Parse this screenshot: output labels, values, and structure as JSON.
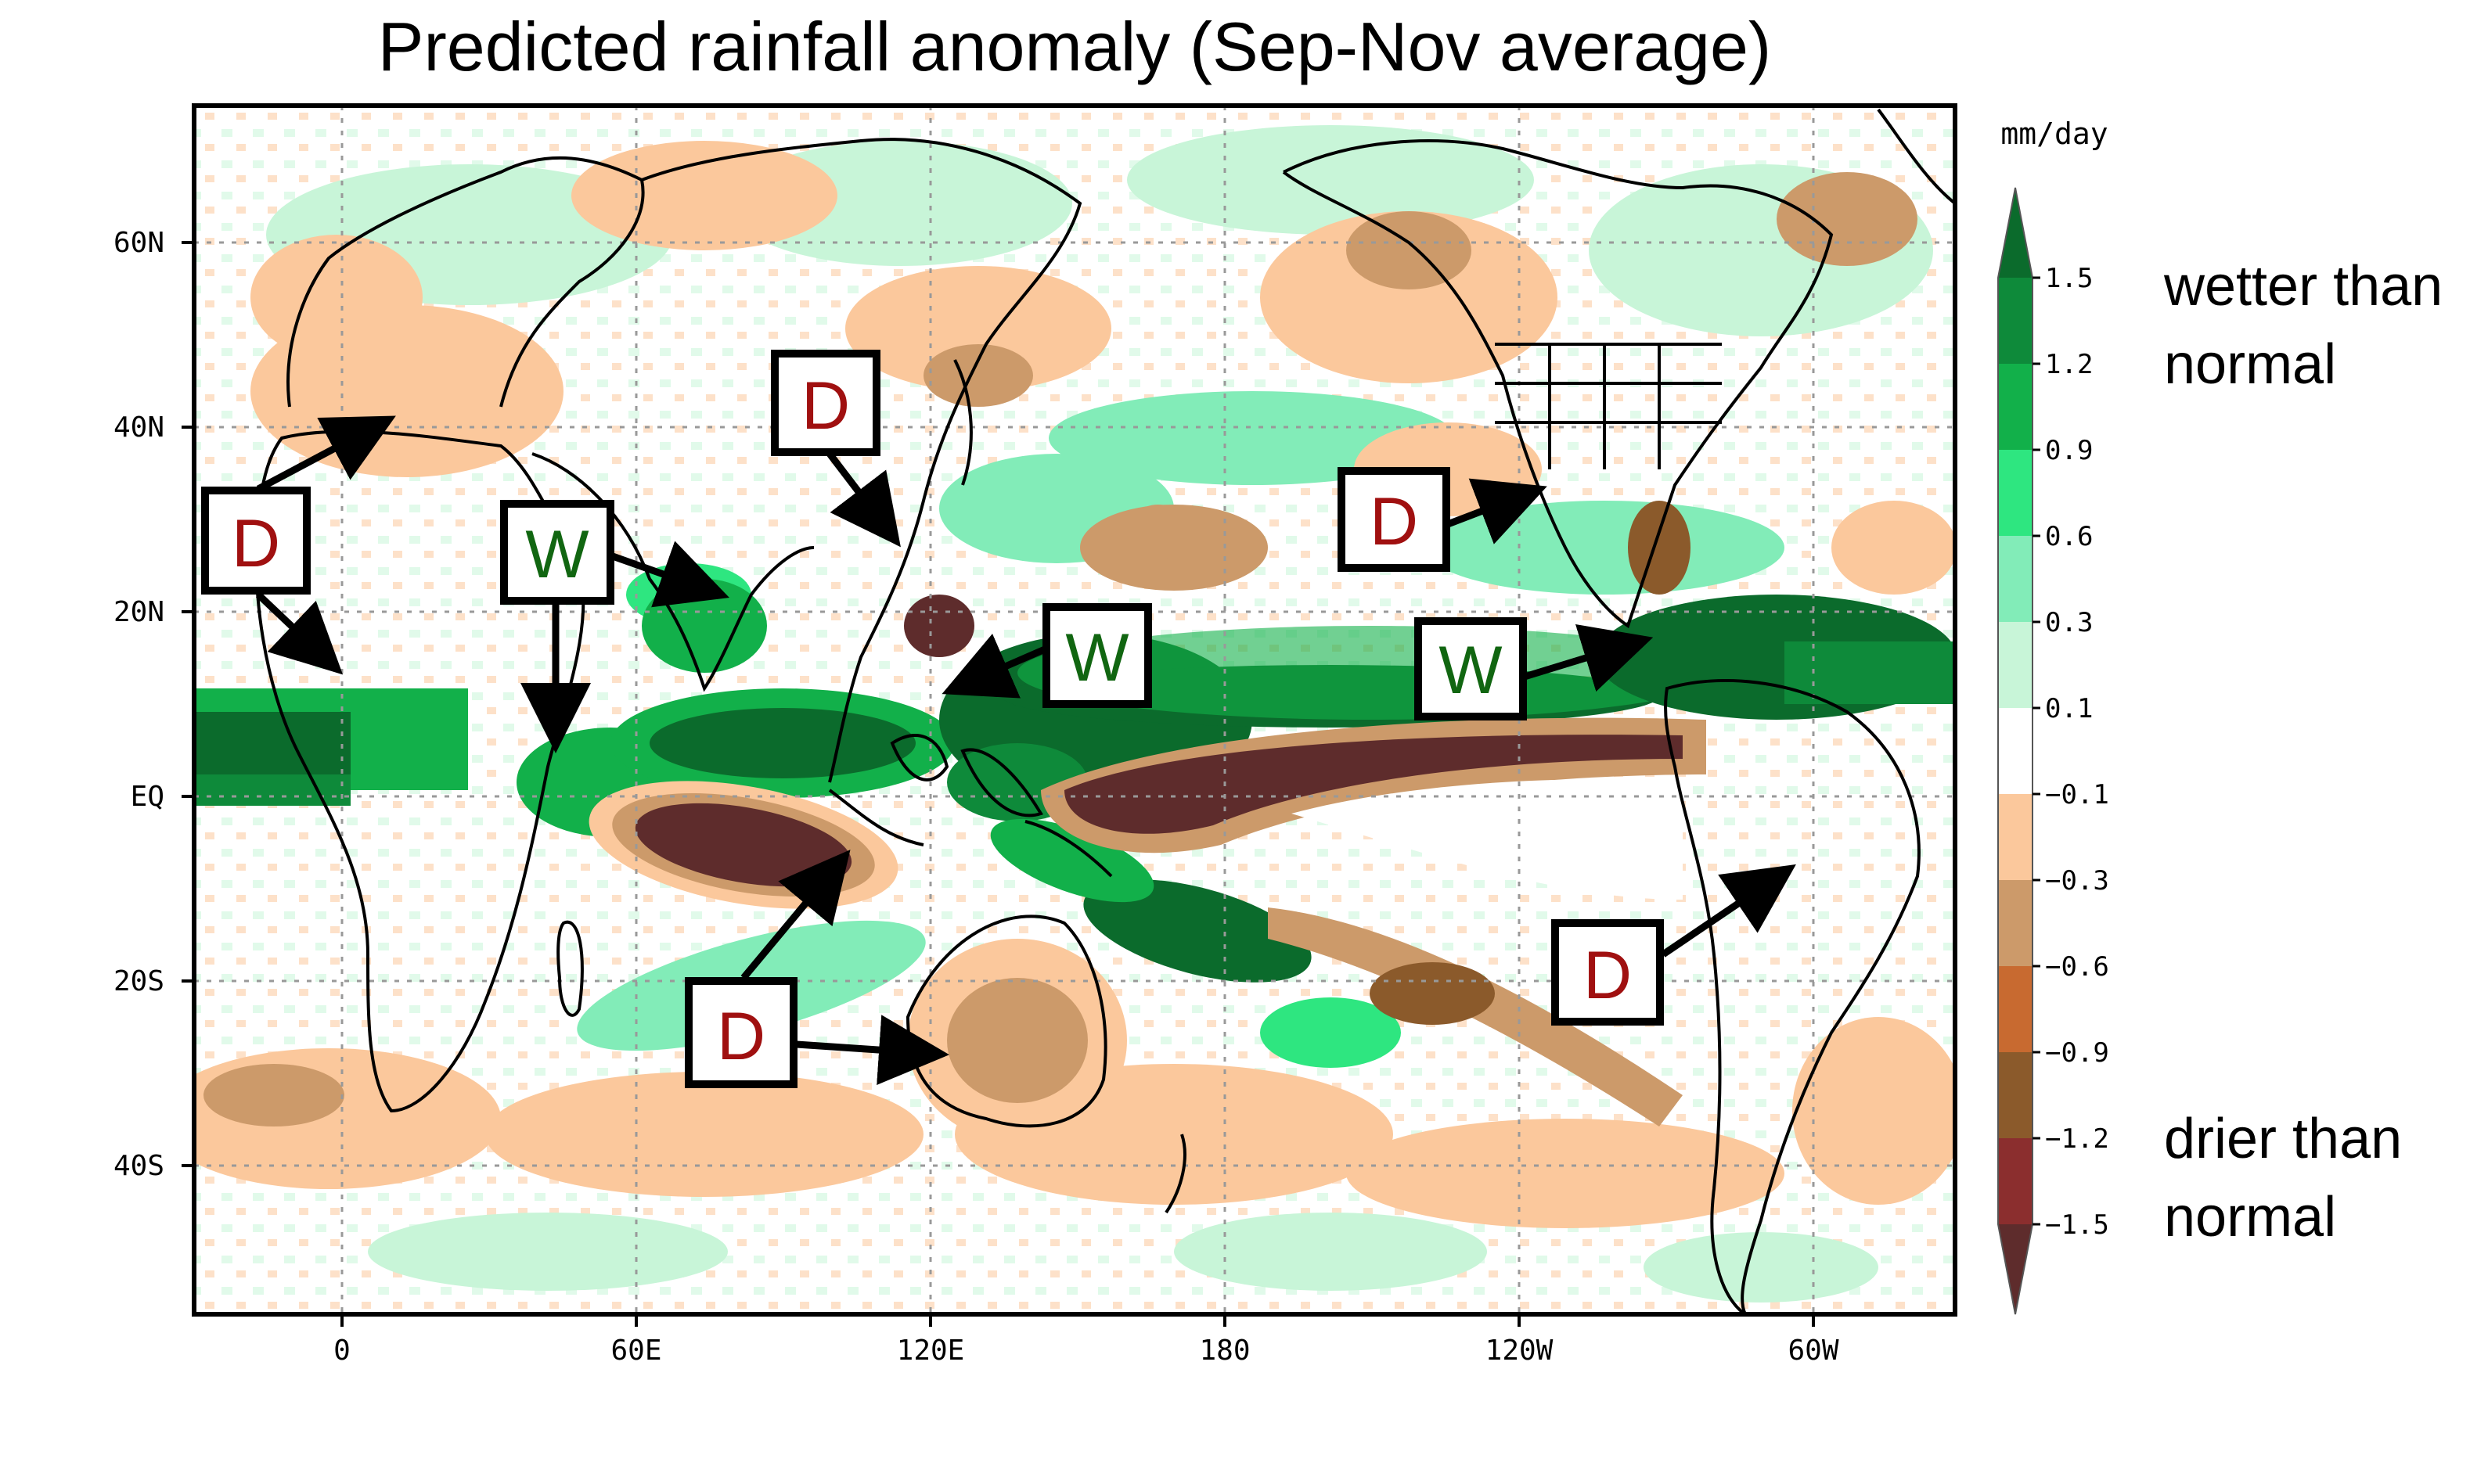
{
  "title": "Predicted rainfall anomaly (Sep-Nov average)",
  "units": "mm/day",
  "lat_labels": [
    "60N",
    "40N",
    "20N",
    "EQ",
    "20S",
    "40S"
  ],
  "lon_labels": [
    "0",
    "60E",
    "120E",
    "180",
    "120W",
    "60W"
  ],
  "colorbar": {
    "tick_labels": [
      "1.5",
      "1.2",
      "0.9",
      "0.6",
      "0.3",
      "0.1",
      "−0.1",
      "−0.3",
      "−0.6",
      "−0.9",
      "−1.2",
      "−1.5"
    ],
    "colors": [
      "#0b6b2c",
      "#0e8a3a",
      "#12b04a",
      "#2ee680",
      "#82ecb8",
      "#c8f5d8",
      "#ffffff",
      "#fbc89c",
      "#cc9a6a",
      "#c86a30",
      "#8b5a2b",
      "#8b2e2e",
      "#5e2c2c"
    ],
    "wet_label_line1": "wetter than",
    "wet_label_line2": "normal",
    "dry_label_line1": "drier than",
    "dry_label_line2": "normal"
  },
  "annotations": {
    "dry": "D",
    "wet": "W",
    "dry_color": "#a01010",
    "wet_color": "#116611"
  }
}
